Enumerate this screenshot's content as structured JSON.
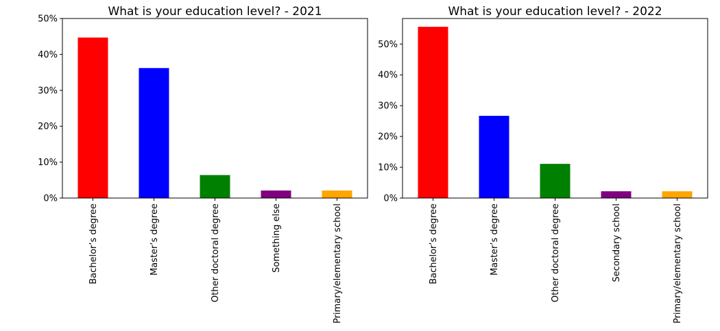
{
  "chart_data": [
    {
      "type": "bar",
      "title": "What is your education level? - 2021",
      "categories": [
        "Bachelor’s degree",
        "Master’s degree",
        "Other doctoral degree",
        "Something else",
        "Primary/elementary school"
      ],
      "values": [
        44.7,
        36.2,
        6.4,
        2.1,
        2.1
      ],
      "colors": [
        "#ff0000",
        "#0000ff",
        "#008000",
        "#800080",
        "#ffa500"
      ],
      "xlabel": "",
      "ylabel": "",
      "ylim": [
        0,
        50
      ],
      "yticks": [
        0,
        10,
        20,
        30,
        40,
        50
      ],
      "ytick_labels": [
        "0%",
        "10%",
        "20%",
        "30%",
        "40%",
        "50%"
      ],
      "grid": false,
      "legend": "none"
    },
    {
      "type": "bar",
      "title": "What is your education level? - 2022",
      "categories": [
        "Bachelor’s degree",
        "Master’s degree",
        "Other doctoral degree",
        "Secondary school",
        "Primary/elementary school"
      ],
      "values": [
        55.6,
        26.7,
        11.1,
        2.2,
        2.2
      ],
      "colors": [
        "#ff0000",
        "#0000ff",
        "#008000",
        "#800080",
        "#ffa500"
      ],
      "xlabel": "",
      "ylabel": "",
      "ylim": [
        0,
        58.3
      ],
      "yticks": [
        0,
        10,
        20,
        30,
        40,
        50
      ],
      "ytick_labels": [
        "0%",
        "10%",
        "20%",
        "30%",
        "40%",
        "50%"
      ],
      "grid": false,
      "legend": "none"
    }
  ]
}
